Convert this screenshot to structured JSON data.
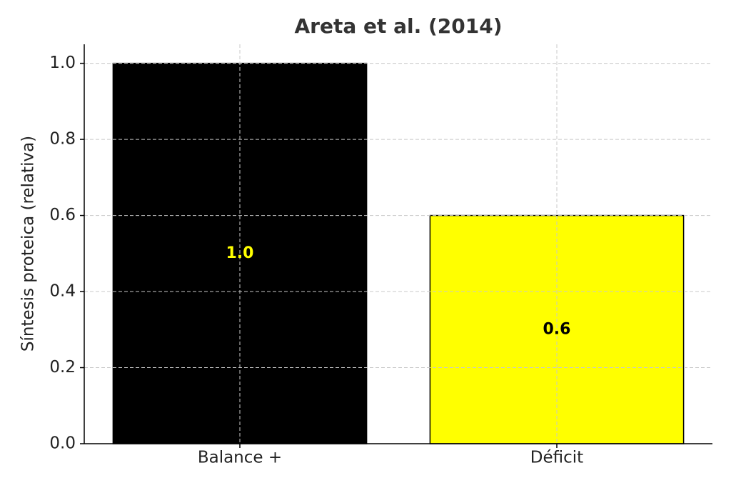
{
  "chart_data": {
    "type": "bar",
    "title": "Areta et al. (2014)",
    "ylabel": "Síntesis proteica (relativa)",
    "categories": [
      "Balance +",
      "Déficit"
    ],
    "values": [
      1.0,
      0.6
    ],
    "value_labels": [
      "1.0",
      "0.6"
    ],
    "colors": [
      "#000000",
      "#ffff00"
    ],
    "value_label_colors": [
      "#ffff00",
      "#000000"
    ],
    "ylim": [
      0,
      1.05
    ],
    "yticks": [
      {
        "value": 0,
        "label": "0.0"
      },
      0.2,
      0.4,
      0.6,
      0.8,
      {
        "value": 1,
        "label": "1.0"
      }
    ],
    "grid": true
  }
}
